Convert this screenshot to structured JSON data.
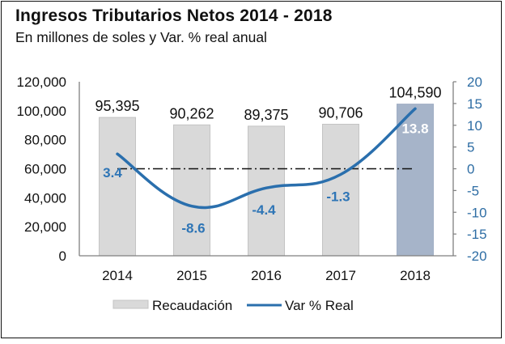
{
  "header": {
    "title": "Ingresos Tributarios Netos 2014 - 2018",
    "subtitle": "En millones de soles y Var. % real anual"
  },
  "chart_data": {
    "type": "bar",
    "title": "Ingresos Tributarios Netos 2014 - 2018",
    "subtitle": "En millones de soles y Var. % real anual",
    "categories": [
      "2014",
      "2015",
      "2016",
      "2017",
      "2018"
    ],
    "series": [
      {
        "name": "Recaudación",
        "type": "bar",
        "axis": "left",
        "values": [
          95395,
          90262,
          89375,
          90706,
          104590
        ],
        "labels": [
          "95,395",
          "90,262",
          "89,375",
          "90,706",
          "104,590"
        ],
        "color": "#d9d9d9",
        "highlight_color": "#a6b4c9",
        "highlight_index": 4
      },
      {
        "name": "Var % Real",
        "type": "line",
        "axis": "right",
        "values": [
          3.4,
          -8.6,
          -4.4,
          -1.3,
          13.8
        ],
        "labels": [
          "3.4",
          "-8.6",
          "-4.4",
          "-1.3",
          "13.8"
        ],
        "color": "#2a6fad",
        "smooth": true
      }
    ],
    "left_axis": {
      "ylim": [
        0,
        120000
      ],
      "ticks": [
        0,
        20000,
        40000,
        60000,
        80000,
        100000,
        120000
      ],
      "tick_labels": [
        "0",
        "20,000",
        "40,000",
        "60,000",
        "80,000",
        "100,000",
        "120,000"
      ]
    },
    "right_axis": {
      "ylim": [
        -20,
        20
      ],
      "ticks": [
        -20,
        -15,
        -10,
        -5,
        0,
        5,
        10,
        15,
        20
      ],
      "tick_labels": [
        "-20",
        "-15",
        "-10",
        "-5",
        "0",
        "5",
        "10",
        "15",
        "20"
      ],
      "color": "#2e6da4"
    },
    "reference_line": {
      "value": 0,
      "axis": "right",
      "style": "dash-dot"
    },
    "grid": false,
    "legend": {
      "position": "bottom",
      "entries": [
        {
          "label": "Recaudación",
          "type": "bar",
          "color": "#d9d9d9"
        },
        {
          "label": "Var % Real",
          "type": "line",
          "color": "#2a6fad"
        }
      ]
    }
  }
}
